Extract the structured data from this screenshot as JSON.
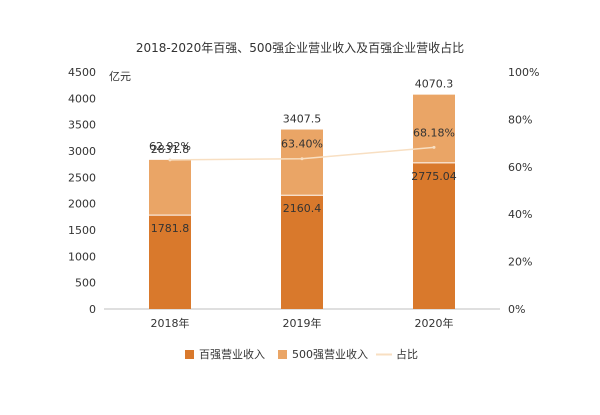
{
  "chart_data": {
    "type": "bar",
    "title": "2018-2020年百强、500强企业营业收入及百强企业营收占比",
    "y_unit_label": "亿元",
    "categories": [
      "2018年",
      "2019年",
      "2020年"
    ],
    "series": [
      {
        "name": "百强营业收入",
        "type": "bar",
        "axis": "left",
        "color": "#d9792c",
        "values": [
          1781.8,
          2160.4,
          2775.04
        ]
      },
      {
        "name": "500强营业收入",
        "type": "bar",
        "axis": "left",
        "color": "#eaa566",
        "values": [
          2831.8,
          3407.5,
          4070.3
        ]
      },
      {
        "name": "占比",
        "type": "line",
        "axis": "right",
        "color": "#f8dfc2",
        "values": [
          62.92,
          63.4,
          68.18
        ],
        "labels": [
          "62.92%",
          "63.40%",
          "68.18%"
        ]
      }
    ],
    "ylim_left": [
      0,
      4500
    ],
    "yticks_left": [
      "0",
      "500",
      "1000",
      "1500",
      "2000",
      "2500",
      "3000",
      "3500",
      "4000",
      "4500"
    ],
    "ylim_right": [
      0,
      100
    ],
    "yticks_right": [
      "0%",
      "20%",
      "40%",
      "60%",
      "80%",
      "100%"
    ],
    "grid": false,
    "legend_position": "bottom"
  }
}
